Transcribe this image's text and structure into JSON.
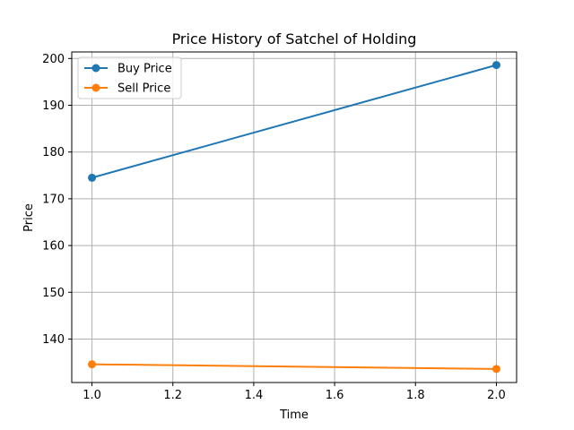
{
  "chart_data": {
    "type": "line",
    "title": "Price History of Satchel of Holding",
    "xlabel": "Time",
    "ylabel": "Price",
    "x": [
      1.0,
      2.0
    ],
    "xlim": [
      0.95,
      2.05
    ],
    "ylim": [
      130.7,
      201.4
    ],
    "xticks": [
      1.0,
      1.2,
      1.4,
      1.6,
      1.8,
      2.0
    ],
    "xtick_labels": [
      "1.0",
      "1.2",
      "1.4",
      "1.6",
      "1.8",
      "2.0"
    ],
    "yticks": [
      140,
      150,
      160,
      170,
      180,
      190,
      200
    ],
    "ytick_labels": [
      "140",
      "150",
      "160",
      "170",
      "180",
      "190",
      "200"
    ],
    "grid": true,
    "legend_position": "top-left",
    "series": [
      {
        "name": "Buy Price",
        "values": [
          174.5,
          198.6
        ],
        "color": "#1f77b4",
        "marker": "circle"
      },
      {
        "name": "Sell Price",
        "values": [
          134.6,
          133.6
        ],
        "color": "#ff7f0e",
        "marker": "circle"
      }
    ]
  }
}
